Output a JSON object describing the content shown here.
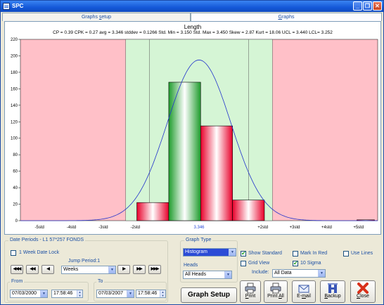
{
  "window": {
    "title": "SPC",
    "buttons": [
      "minimize",
      "restore",
      "close"
    ]
  },
  "tabs": [
    {
      "label_pre": "Graphs ",
      "label_u": "s",
      "label_post": "etup",
      "active": false
    },
    {
      "label_pre": "",
      "label_u": "G",
      "label_post": "raphs",
      "active": true
    }
  ],
  "chart": {
    "title": "Length",
    "stats": "CP = 0.39  CPK = 0.27  avg = 3.346  stddev = 0.1266  Std. Min = 3.150  Std. Max = 3.450  Skew = 2.87  Kurt = 18.06  UCL = 3.440  LCL= 3.252"
  },
  "chart_data": {
    "type": "bar",
    "title": "Length",
    "ylim": [
      0,
      220
    ],
    "yticks": [
      0,
      20,
      40,
      60,
      80,
      100,
      120,
      140,
      160,
      180,
      200,
      220
    ],
    "xlabels": [
      {
        "label": "-5std",
        "pos": -5,
        "color": "#000000"
      },
      {
        "label": "-4std",
        "pos": -4,
        "color": "#000000"
      },
      {
        "label": "-3std",
        "pos": -3,
        "color": "#000000"
      },
      {
        "label": "-2std",
        "pos": -2,
        "color": "#000000"
      },
      {
        "label": "3.346",
        "pos": 0,
        "color": "#2a4bd6"
      },
      {
        "label": "+2std",
        "pos": 2,
        "color": "#000000"
      },
      {
        "label": "+3std",
        "pos": 3,
        "color": "#000000"
      },
      {
        "label": "+4std",
        "pos": 4,
        "color": "#000000"
      },
      {
        "label": "+5std",
        "pos": 5,
        "color": "#000000"
      }
    ],
    "xrange": [
      -5.6,
      5.6
    ],
    "bars": [
      {
        "start": -1.95,
        "end": -0.95,
        "value": 22,
        "color": "red"
      },
      {
        "start": -0.95,
        "end": 0.05,
        "value": 168,
        "color": "green"
      },
      {
        "start": 0.05,
        "end": 1.05,
        "value": 115,
        "color": "red"
      },
      {
        "start": 1.05,
        "end": 2.05,
        "value": 25,
        "color": "red"
      },
      {
        "start": 4.95,
        "end": 5.5,
        "value": 1,
        "color": "red"
      }
    ],
    "bands": [
      {
        "start": -2.3,
        "end": 2.3,
        "color": "#d5f5d5"
      },
      {
        "start": -1.55,
        "end": 1.55,
        "color": "#d5f5d5"
      }
    ],
    "curve_peak": 195,
    "colors": {
      "background": "#ffc0c8",
      "band": "#d5f5d5",
      "curve": "#2233cc",
      "red": "#e8002a",
      "green": "#1f9c2d"
    }
  },
  "date_periods": {
    "legend": "Date Periods - L1  57*257 FONDS",
    "week_lock_label": "1 Week Date Lock",
    "jump_label": "Jump Period:1",
    "jump_unit": "Weeks",
    "from_label": "From",
    "from_date": "07/03/2000",
    "from_time": "17:58:46",
    "to_label": "To",
    "to_date": "07/03/2007",
    "to_time": "17:58:46"
  },
  "graph_type": {
    "legend": "Graph Type",
    "value": "Histogram",
    "heads_label": "Heads",
    "heads_value": "All Heads",
    "setup_button": "Graph Setup"
  },
  "options": {
    "show_standard": {
      "label": "Show Standard",
      "checked": true
    },
    "mark_in_red": {
      "label": "Mark In Red",
      "checked": false
    },
    "use_lines": {
      "label": "Use Lines",
      "checked": false
    },
    "grid_view": {
      "label": "Grid View",
      "checked": false
    },
    "ten_sigma": {
      "label": "10 Sigma",
      "checked": true
    },
    "include_label": "Include:",
    "include_value": "All Data"
  },
  "actions": [
    {
      "label_pre": "",
      "label_u": "P",
      "label_post": "rint",
      "icon": "printer-icon"
    },
    {
      "label_pre": "Print ",
      "label_u": "A",
      "label_post": "ll",
      "icon": "printer-icon"
    },
    {
      "label_pre": "E-",
      "label_u": "m",
      "label_post": "ail",
      "icon": "envelope-icon"
    },
    {
      "label_pre": "",
      "label_u": "B",
      "label_post": "ackup",
      "icon": "backup-icon"
    },
    {
      "label_pre": "",
      "label_u": "C",
      "label_post": "lose",
      "icon": "close-x-icon"
    }
  ]
}
